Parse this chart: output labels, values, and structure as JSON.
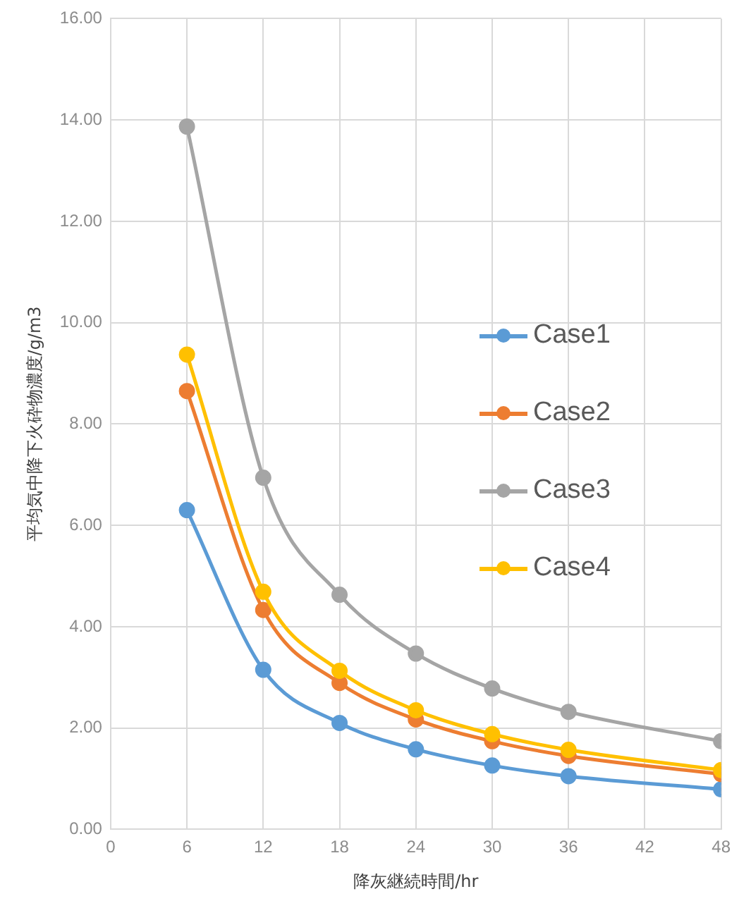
{
  "chart_data": {
    "type": "line",
    "xlabel": "降灰継続時間/hr",
    "ylabel": "平均気中降下火砕物濃度/g/m3",
    "x": [
      6,
      12,
      18,
      24,
      30,
      36,
      48
    ],
    "xlim": [
      0,
      48
    ],
    "xticks": [
      0,
      6,
      12,
      18,
      24,
      30,
      36,
      42,
      48
    ],
    "ylim": [
      0,
      16
    ],
    "yticks": [
      {
        "value": 0,
        "label": "0.00"
      },
      {
        "value": 2,
        "label": "2.00"
      },
      {
        "value": 4,
        "label": "4.00"
      },
      {
        "value": 6,
        "label": "6.00"
      },
      {
        "value": 8,
        "label": "8.00"
      },
      {
        "value": 10,
        "label": "10.00"
      },
      {
        "value": 12,
        "label": "12.00"
      },
      {
        "value": 14,
        "label": "14.00"
      },
      {
        "value": 16,
        "label": "16.00"
      }
    ],
    "grid": true,
    "legend": "right",
    "marker": "circle",
    "line_style": "solid",
    "series": [
      {
        "name": "Case1",
        "color": "#5b9bd5",
        "values": [
          6.3,
          3.15,
          2.1,
          1.58,
          1.26,
          1.05,
          0.79
        ]
      },
      {
        "name": "Case2",
        "color": "#ed7d31",
        "values": [
          8.65,
          4.33,
          2.89,
          2.17,
          1.74,
          1.45,
          1.09
        ]
      },
      {
        "name": "Case3",
        "color": "#a5a5a5",
        "values": [
          13.87,
          6.94,
          4.63,
          3.47,
          2.78,
          2.32,
          1.74
        ]
      },
      {
        "name": "Case4",
        "color": "#ffc000",
        "values": [
          9.37,
          4.69,
          3.13,
          2.35,
          1.88,
          1.57,
          1.17
        ]
      }
    ]
  }
}
